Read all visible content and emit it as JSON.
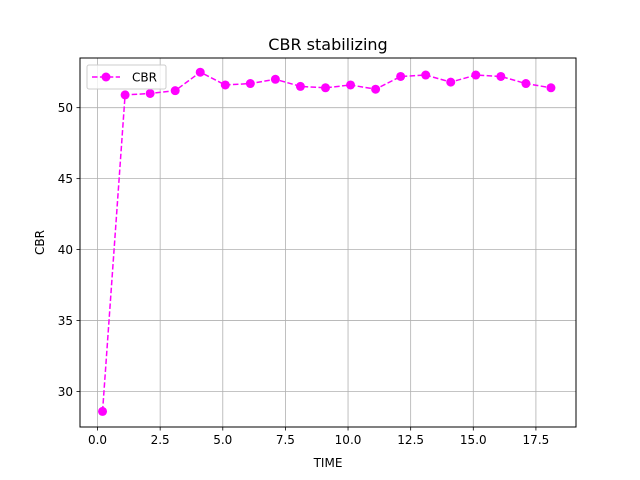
{
  "chart_data": {
    "type": "line",
    "title": "CBR stabilizing",
    "xlabel": "TIME",
    "ylabel": "CBR",
    "xlim": [
      -0.7,
      19.1
    ],
    "ylim": [
      27.5,
      53.5
    ],
    "xticks": [
      0.0,
      2.5,
      5.0,
      7.5,
      10.0,
      12.5,
      15.0,
      17.5
    ],
    "xtick_labels": [
      "0.0",
      "2.5",
      "5.0",
      "7.5",
      "10.0",
      "12.5",
      "15.0",
      "17.5"
    ],
    "yticks": [
      30,
      35,
      40,
      45,
      50
    ],
    "ytick_labels": [
      "30",
      "35",
      "40",
      "45",
      "50"
    ],
    "grid": true,
    "legend_position": "top-left",
    "series": [
      {
        "name": "CBR",
        "color": "#ff00ff",
        "linestyle": "dashed",
        "marker": "circle",
        "x": [
          0.2,
          1.1,
          2.1,
          3.1,
          4.1,
          5.1,
          6.1,
          7.1,
          8.1,
          9.1,
          10.1,
          11.1,
          12.1,
          13.1,
          14.1,
          15.1,
          16.1,
          17.1,
          18.1
        ],
        "y": [
          28.6,
          50.9,
          51.0,
          51.2,
          52.5,
          51.6,
          51.7,
          52.0,
          51.5,
          51.4,
          51.6,
          51.3,
          52.2,
          52.3,
          51.8,
          52.3,
          52.2,
          51.7,
          51.4
        ]
      }
    ]
  }
}
